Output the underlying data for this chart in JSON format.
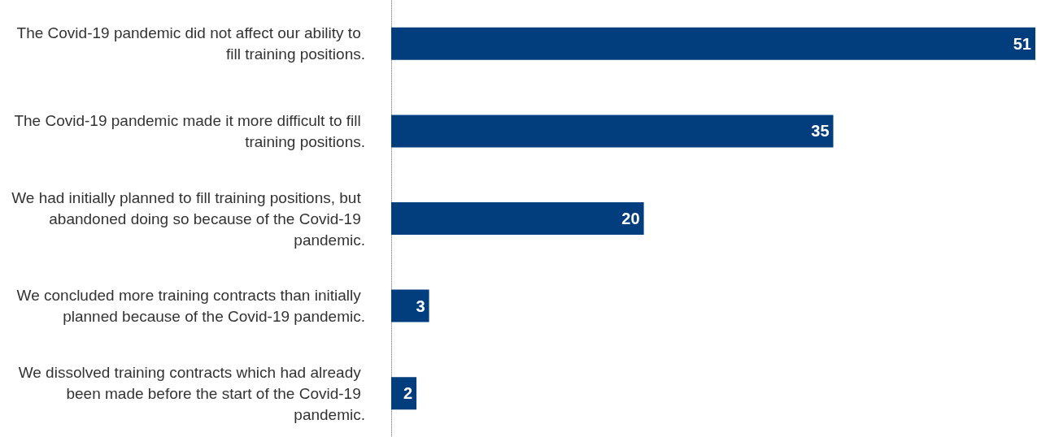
{
  "chart_data": {
    "type": "bar",
    "orientation": "horizontal",
    "data_labels": true,
    "categories": [
      "The Covid-19 pandemic did not affect our ability to fill training positions.",
      "The Covid-19 pandemic made it more difficult to fill training positions.",
      "We had initially planned to fill training positions, but abandoned doing so because of the Covid-19 pandemic.",
      "We concluded more training contracts than initially planned because of the Covid-19 pandemic.",
      "We dissolved training contracts which had already been made before the start of the Covid-19 pandemic."
    ],
    "values": [
      51,
      35,
      20,
      3,
      2
    ],
    "color": "#023e7d"
  }
}
